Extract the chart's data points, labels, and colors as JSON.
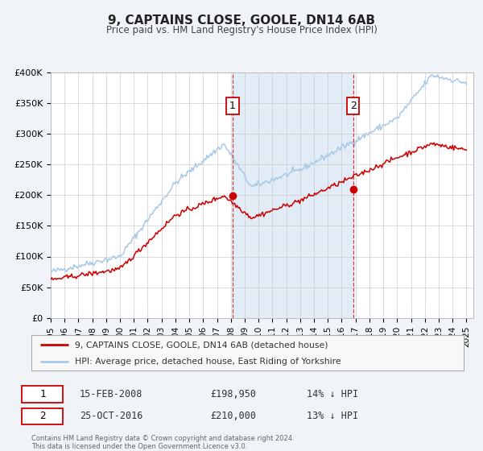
{
  "title": "9, CAPTAINS CLOSE, GOOLE, DN14 6AB",
  "subtitle": "Price paid vs. HM Land Registry's House Price Index (HPI)",
  "ylim": [
    0,
    400000
  ],
  "yticks": [
    0,
    50000,
    100000,
    150000,
    200000,
    250000,
    300000,
    350000,
    400000
  ],
  "ytick_labels": [
    "£0",
    "£50K",
    "£100K",
    "£150K",
    "£200K",
    "£250K",
    "£300K",
    "£350K",
    "£400K"
  ],
  "xlim_start": 1995.0,
  "xlim_end": 2025.5,
  "hpi_color": "#a8c8e8",
  "price_color": "#cc0000",
  "bg_color": "#f0f4f8",
  "plot_bg": "#ffffff",
  "grid_color": "#cccccc",
  "sale1_x": 2008.12,
  "sale1_y": 198950,
  "sale2_x": 2016.82,
  "sale2_y": 210000,
  "legend_label1": "9, CAPTAINS CLOSE, GOOLE, DN14 6AB (detached house)",
  "legend_label2": "HPI: Average price, detached house, East Riding of Yorkshire",
  "sale1_date": "15-FEB-2008",
  "sale1_price": "£198,950",
  "sale1_hpi": "14% ↓ HPI",
  "sale2_date": "25-OCT-2016",
  "sale2_price": "£210,000",
  "sale2_hpi": "13% ↓ HPI",
  "footer1": "Contains HM Land Registry data © Crown copyright and database right 2024.",
  "footer2": "This data is licensed under the Open Government Licence v3.0."
}
